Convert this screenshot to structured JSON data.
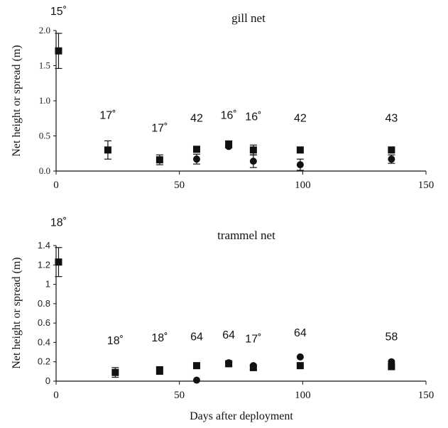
{
  "chart_data": [
    {
      "type": "scatter",
      "title": "gill net",
      "ylabel": "Net height or spread (m)",
      "xlabel": "",
      "xlim": [
        0,
        150
      ],
      "ylim": [
        0,
        2.0
      ],
      "xticks": [
        "0",
        "50",
        "100",
        "150"
      ],
      "yticks": [
        "0.0",
        "0.5",
        "1.0",
        "1.5",
        "2.0"
      ],
      "grid": false,
      "series": [
        {
          "marker": "square",
          "points": [
            {
              "x": 1,
              "y": 1.71,
              "err": 0.25
            },
            {
              "x": 21,
              "y": 0.3,
              "err": 0.13
            },
            {
              "x": 42,
              "y": 0.16,
              "err": 0.07
            },
            {
              "x": 57,
              "y": 0.31,
              "err": 0
            },
            {
              "x": 70,
              "y": 0.38,
              "err": 0.05
            },
            {
              "x": 80,
              "y": 0.3,
              "err": 0.07
            },
            {
              "x": 99,
              "y": 0.3,
              "err": 0
            },
            {
              "x": 136,
              "y": 0.3,
              "err": 0
            }
          ]
        },
        {
          "marker": "circle",
          "points": [
            {
              "x": 57,
              "y": 0.17,
              "err": 0.07
            },
            {
              "x": 70,
              "y": 0.35,
              "err": 0
            },
            {
              "x": 80,
              "y": 0.14,
              "err": 0.09
            },
            {
              "x": 99,
              "y": 0.09,
              "err": 0.08
            },
            {
              "x": 136,
              "y": 0.17,
              "err": 0.06
            }
          ]
        }
      ],
      "annotations": [
        {
          "x": 1,
          "y": 2.22,
          "text": "15˚"
        },
        {
          "x": 21,
          "y": 0.74,
          "text": "17˚"
        },
        {
          "x": 42,
          "y": 0.56,
          "text": "17˚"
        },
        {
          "x": 57,
          "y": 0.7,
          "text": "42"
        },
        {
          "x": 70,
          "y": 0.74,
          "text": "16˚"
        },
        {
          "x": 80,
          "y": 0.72,
          "text": "16˚"
        },
        {
          "x": 99,
          "y": 0.7,
          "text": "42"
        },
        {
          "x": 136,
          "y": 0.7,
          "text": "43"
        }
      ]
    },
    {
      "type": "scatter",
      "title": "trammel net",
      "ylabel": "Net height or spread (m)",
      "xlabel": "Days after deployment",
      "xlim": [
        0,
        150
      ],
      "ylim": [
        0,
        1.4
      ],
      "xticks": [
        "0",
        "50",
        "100",
        "150"
      ],
      "yticks": [
        "0",
        "0.2",
        "0.4",
        "0.6",
        "0.8",
        "1",
        "1.2",
        "1.4"
      ],
      "grid": false,
      "series": [
        {
          "marker": "square",
          "points": [
            {
              "x": 1,
              "y": 1.23,
              "err": 0.15
            },
            {
              "x": 24,
              "y": 0.09,
              "err": 0.05
            },
            {
              "x": 42,
              "y": 0.11,
              "err": 0.04
            },
            {
              "x": 57,
              "y": 0.16,
              "err": 0
            },
            {
              "x": 70,
              "y": 0.18,
              "err": 0.02
            },
            {
              "x": 80,
              "y": 0.14,
              "err": 0.02
            },
            {
              "x": 99,
              "y": 0.16,
              "err": 0
            },
            {
              "x": 136,
              "y": 0.15,
              "err": 0
            }
          ]
        },
        {
          "marker": "circle",
          "points": [
            {
              "x": 57,
              "y": 0.01,
              "err": 0
            },
            {
              "x": 70,
              "y": 0.19,
              "err": 0
            },
            {
              "x": 80,
              "y": 0.16,
              "err": 0
            },
            {
              "x": 99,
              "y": 0.25,
              "err": 0
            },
            {
              "x": 136,
              "y": 0.2,
              "err": 0
            }
          ]
        }
      ],
      "annotations": [
        {
          "x": 1,
          "y": 1.6,
          "text": "18˚"
        },
        {
          "x": 24,
          "y": 0.38,
          "text": "18˚"
        },
        {
          "x": 42,
          "y": 0.41,
          "text": "18˚"
        },
        {
          "x": 57,
          "y": 0.42,
          "text": "64"
        },
        {
          "x": 70,
          "y": 0.44,
          "text": "64"
        },
        {
          "x": 80,
          "y": 0.4,
          "text": "17˚"
        },
        {
          "x": 99,
          "y": 0.46,
          "text": "64"
        },
        {
          "x": 136,
          "y": 0.42,
          "text": "58"
        }
      ]
    }
  ]
}
